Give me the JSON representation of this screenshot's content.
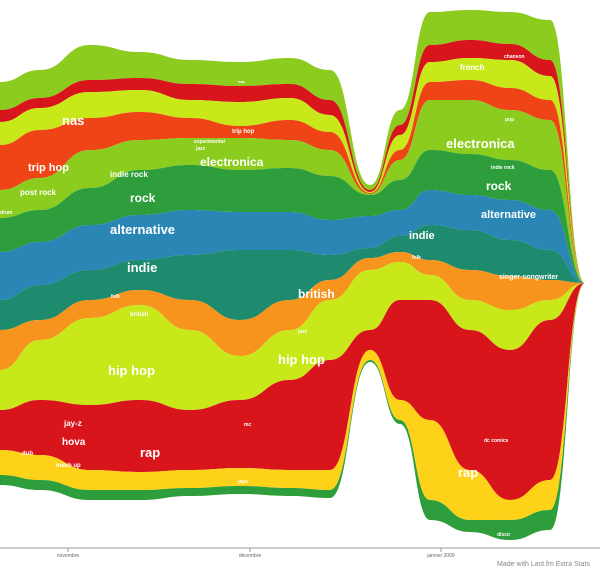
{
  "chart_data": {
    "type": "area",
    "layout": "streamgraph",
    "title": "",
    "xlabel": "",
    "ylabel": "",
    "x_ticks": [
      "novembre",
      "décembre",
      "janvier 2009"
    ],
    "credit": "Made with Last.fm Extra Stats",
    "colors": [
      "#d9151c",
      "#ef4516",
      "#f7941e",
      "#ffd21a",
      "#e7ef1b",
      "#c8e81a",
      "#8ccc1e",
      "#2e9e3c",
      "#1e8a6e",
      "#2a86b5"
    ],
    "series": [
      {
        "name": "nas"
      },
      {
        "name": "trip hop"
      },
      {
        "name": "post rock"
      },
      {
        "name": "experimental"
      },
      {
        "name": "jazz"
      },
      {
        "name": "electronica"
      },
      {
        "name": "indie rock"
      },
      {
        "name": "french"
      },
      {
        "name": "chanson"
      },
      {
        "name": "pop"
      },
      {
        "name": "rock"
      },
      {
        "name": "alternative"
      },
      {
        "name": "indie"
      },
      {
        "name": "folk"
      },
      {
        "name": "singer-songwriter"
      },
      {
        "name": "british"
      },
      {
        "name": "hip hop"
      },
      {
        "name": "jay-z"
      },
      {
        "name": "hova"
      },
      {
        "name": "dub"
      },
      {
        "name": "mash up"
      },
      {
        "name": "rap"
      },
      {
        "name": "mc"
      },
      {
        "name": "jaya"
      },
      {
        "name": "drum"
      },
      {
        "name": "dc comics"
      },
      {
        "name": "disco"
      }
    ]
  }
}
